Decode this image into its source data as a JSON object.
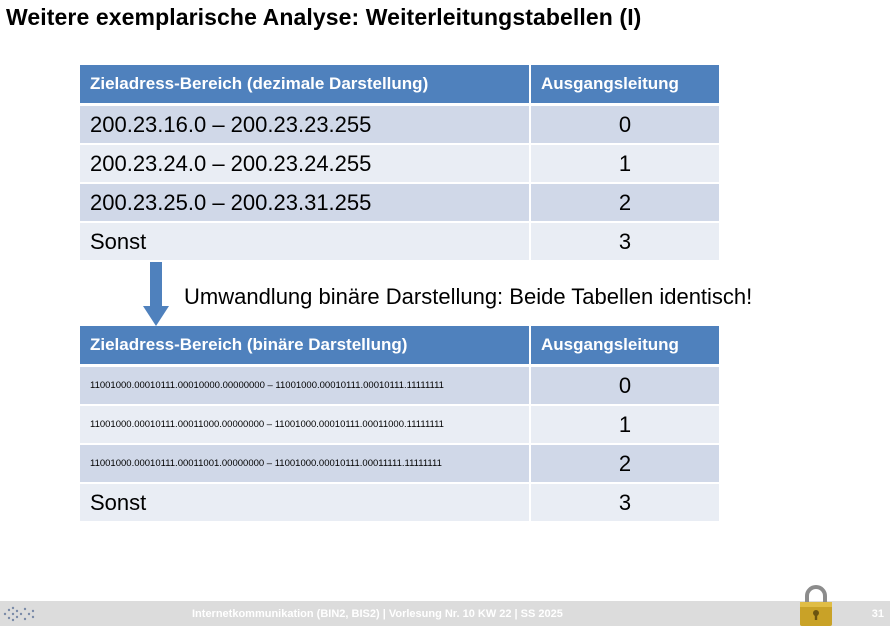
{
  "slide": {
    "title": "Weitere exemplarische Analyse: Weiterleitungstabellen (I)"
  },
  "table_decimal": {
    "headers": [
      "Zieladress-Bereich (dezimale Darstellung)",
      "Ausgangsleitung"
    ],
    "rows": [
      {
        "range": "200.23.16.0 – 200.23.23.255",
        "out": "0"
      },
      {
        "range": "200.23.24.0 – 200.23.24.255",
        "out": "1"
      },
      {
        "range": "200.23.25.0 – 200.23.31.255",
        "out": "2"
      },
      {
        "range": "Sonst",
        "out": "3"
      }
    ]
  },
  "conversion_note": "Umwandlung binäre Darstellung: Beide Tabellen identisch!",
  "table_binary": {
    "headers": [
      "Zieladress-Bereich (binäre Darstellung)",
      "Ausgangsleitung"
    ],
    "rows": [
      {
        "range": "11001000.00010111.00010000.00000000 – 11001000.00010111.00010111.11111111",
        "out": "0"
      },
      {
        "range": "11001000.00010111.00011000.00000000 – 11001000.00010111.00011000.11111111",
        "out": "1"
      },
      {
        "range": "11001000.00010111.00011001.00000000 – 11001000.00010111.00011111.11111111",
        "out": "2"
      },
      {
        "range": "Sonst",
        "out": "3"
      }
    ]
  },
  "footer": {
    "text": "Internetkommunikation (BIN2, BIS2) | Vorlesung Nr. 10 KW 22 | SS 2025",
    "page_number": "31"
  },
  "colors": {
    "header_bg": "#4f81bd",
    "row_odd": "#d0d8e8",
    "row_even": "#e9edf4",
    "arrow": "#4f81bd",
    "footer_bg": "#dcdcdc",
    "lock": "#c9a227"
  },
  "icons": {
    "arrow": "down-arrow-icon",
    "logo": "university-logo-icon",
    "lock": "padlock-icon"
  }
}
